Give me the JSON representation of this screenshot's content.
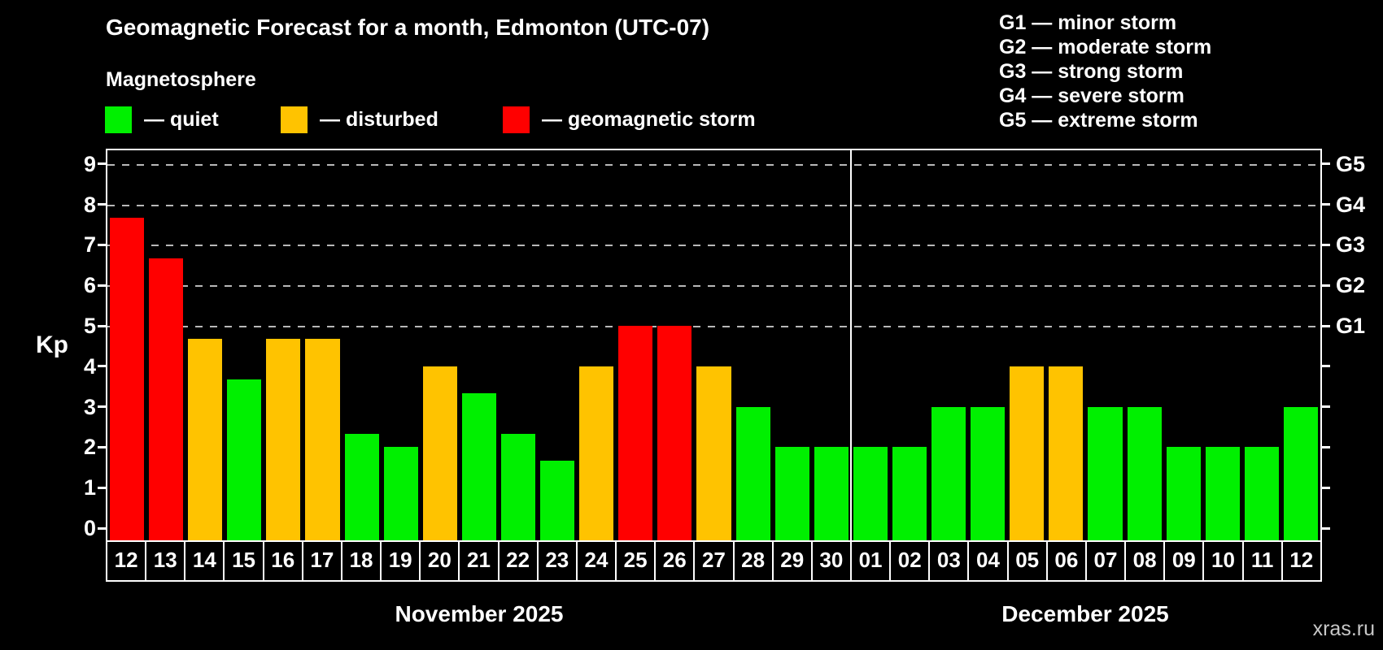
{
  "header": {
    "title": "Geomagnetic Forecast for a month, Edmonton (UTC-07)",
    "subtitle": "Magnetosphere"
  },
  "legend": {
    "items": [
      {
        "key": "quiet",
        "label": "— quiet",
        "color": "#00f000"
      },
      {
        "key": "disturbed",
        "label": "— disturbed",
        "color": "#ffc300"
      },
      {
        "key": "storm",
        "label": "— geomagnetic storm",
        "color": "#ff0000"
      }
    ]
  },
  "g_legend": {
    "lines": [
      "G1 — minor storm",
      "G2 — moderate storm",
      "G3 — strong storm",
      "G4 — severe storm",
      "G5 — extreme storm"
    ]
  },
  "colors": {
    "quiet": "#00f000",
    "disturbed": "#ffc300",
    "storm": "#ff0000",
    "background": "#000000",
    "axis": "#ffffff",
    "gridline": "#b8b8b8",
    "watermark_text": "#c8c8c8"
  },
  "watermark": "xras.ru",
  "chart_data": {
    "type": "bar",
    "title": "Geomagnetic Forecast for a month, Edmonton (UTC-07)",
    "subtitle": "Magnetosphere",
    "xlabel": "",
    "ylabel": "Kp",
    "ylim": [
      0,
      9
    ],
    "grid": "dashed horizontal at Kp 5-9 only",
    "y_ticks": [
      0,
      1,
      2,
      3,
      4,
      5,
      6,
      7,
      8,
      9
    ],
    "right_axis_labels": [
      {
        "label": "G1",
        "value": 5
      },
      {
        "label": "G2",
        "value": 6
      },
      {
        "label": "G3",
        "value": 7
      },
      {
        "label": "G4",
        "value": 8
      },
      {
        "label": "G5",
        "value": 9
      }
    ],
    "months": [
      {
        "label": "November 2025",
        "points": [
          {
            "day": "12",
            "kp": 7.67,
            "level": "storm"
          },
          {
            "day": "13",
            "kp": 6.67,
            "level": "storm"
          },
          {
            "day": "14",
            "kp": 4.67,
            "level": "disturbed"
          },
          {
            "day": "15",
            "kp": 3.67,
            "level": "quiet"
          },
          {
            "day": "16",
            "kp": 4.67,
            "level": "disturbed"
          },
          {
            "day": "17",
            "kp": 4.67,
            "level": "disturbed"
          },
          {
            "day": "18",
            "kp": 2.33,
            "level": "quiet"
          },
          {
            "day": "19",
            "kp": 2.0,
            "level": "quiet"
          },
          {
            "day": "20",
            "kp": 4.0,
            "level": "disturbed"
          },
          {
            "day": "21",
            "kp": 3.33,
            "level": "quiet"
          },
          {
            "day": "22",
            "kp": 2.33,
            "level": "quiet"
          },
          {
            "day": "23",
            "kp": 1.67,
            "level": "quiet"
          },
          {
            "day": "24",
            "kp": 4.0,
            "level": "disturbed"
          },
          {
            "day": "25",
            "kp": 5.0,
            "level": "storm"
          },
          {
            "day": "26",
            "kp": 5.0,
            "level": "storm"
          },
          {
            "day": "27",
            "kp": 4.0,
            "level": "disturbed"
          },
          {
            "day": "28",
            "kp": 3.0,
            "level": "quiet"
          },
          {
            "day": "29",
            "kp": 2.0,
            "level": "quiet"
          },
          {
            "day": "30",
            "kp": 2.0,
            "level": "quiet"
          }
        ]
      },
      {
        "label": "December 2025",
        "points": [
          {
            "day": "01",
            "kp": 2.0,
            "level": "quiet"
          },
          {
            "day": "02",
            "kp": 2.0,
            "level": "quiet"
          },
          {
            "day": "03",
            "kp": 3.0,
            "level": "quiet"
          },
          {
            "day": "04",
            "kp": 3.0,
            "level": "quiet"
          },
          {
            "day": "05",
            "kp": 4.0,
            "level": "disturbed"
          },
          {
            "day": "06",
            "kp": 4.0,
            "level": "disturbed"
          },
          {
            "day": "07",
            "kp": 3.0,
            "level": "quiet"
          },
          {
            "day": "08",
            "kp": 3.0,
            "level": "quiet"
          },
          {
            "day": "09",
            "kp": 2.0,
            "level": "quiet"
          },
          {
            "day": "10",
            "kp": 2.0,
            "level": "quiet"
          },
          {
            "day": "11",
            "kp": 2.0,
            "level": "quiet"
          },
          {
            "day": "12",
            "kp": 3.0,
            "level": "quiet"
          }
        ]
      }
    ]
  }
}
